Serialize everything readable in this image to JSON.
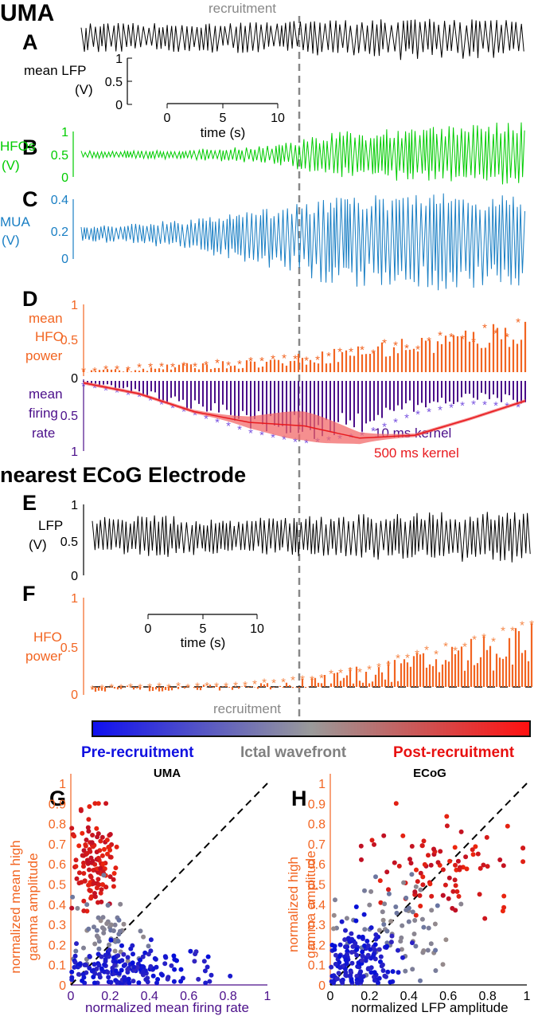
{
  "texts": {
    "uma": "UMA",
    "recruitment_top": "recruitment",
    "recruitment_bottom": "recruitment",
    "ecog_title": "nearest ECoG Electrode",
    "panelA": "A",
    "panelB": "B",
    "panelC": "C",
    "panelD": "D",
    "panelE": "E",
    "panelF": "F",
    "panelG": "G",
    "panelH": "H",
    "a_ylabel1": "mean LFP",
    "a_ylabel2": "(V)",
    "b_ylabel1": "HFOs",
    "b_ylabel2": "(V)",
    "c_ylabel1": "MUA",
    "c_ylabel2": "(V)",
    "d_ylabel1": "mean",
    "d_ylabel2": "HFO",
    "d_ylabel3": "power",
    "d_ylabel4": "mean",
    "d_ylabel5": "firing",
    "d_ylabel6": "rate",
    "kernel10": "10 ms kernel",
    "kernel500": "500 ms kernel",
    "e_ylabel1": "LFP",
    "e_ylabel2": "(V)",
    "f_ylabel1": "HFO",
    "f_ylabel2": "power",
    "time_label": "time (s)",
    "time_label2": "time (s)",
    "pre": "Pre-recruitment",
    "ictal": "Ictal wavefront",
    "post": "Post-recruitment",
    "g_title": "UMA",
    "h_title": "ECoG",
    "g_ylabel1": "normalized mean high",
    "g_ylabel2": "gamma amplitude",
    "g_xlabel": "normalized mean firing rate",
    "h_ylabel1": "normalized high",
    "h_ylabel2": "gamma amplitude",
    "h_xlabel": "normalized LFP amplitude"
  },
  "ticks": {
    "A": [
      "1",
      "0.5",
      "0"
    ],
    "B": [
      "1",
      "0.5",
      "0"
    ],
    "C": [
      "0.4",
      "0.2",
      "0"
    ],
    "D_top": [
      "1",
      "0.5",
      "0"
    ],
    "D_bottom": [
      "0.5",
      "1"
    ],
    "E": [
      "1",
      "0.5",
      "0"
    ],
    "F": [
      "1",
      "0.5",
      "0"
    ],
    "time": [
      "0",
      "5",
      "10"
    ],
    "scatter_y": [
      "1",
      "0.9",
      "0.8",
      "0.7",
      "0.6",
      "0.5",
      "0.4",
      "0.3",
      "0.2",
      "0.1",
      "0"
    ],
    "G_x": [
      "0",
      "0.2",
      "0.4",
      "0.6",
      "0.8",
      "1"
    ],
    "H_x": [
      "0",
      "0.2",
      "0.4",
      "0.6",
      "0.8",
      "1"
    ]
  },
  "colors": {
    "lfp": "#000000",
    "hfo": "#00cc00",
    "mua": "#1a7fc4",
    "orange": "#f26522",
    "purple": "#4b0f8a",
    "red": "#e8191e",
    "pre": "#1010e0",
    "ictal": "#808080",
    "post": "#e81010",
    "dash": "#888888"
  },
  "chart_data": [
    {
      "id": "A",
      "type": "line",
      "ylabel": "mean LFP (V)",
      "xlabel": "time (s)",
      "ylim": [
        0,
        1
      ],
      "xlim": [
        0,
        10
      ],
      "series": [
        {
          "values": [
            0.5,
            0.5,
            0.52,
            0.55,
            0.6,
            0.68,
            0.75,
            0.7,
            0.65
          ]
        }
      ]
    },
    {
      "id": "B",
      "type": "line",
      "ylabel": "HFOs (V)",
      "ylim": [
        0,
        1
      ],
      "series": [
        {
          "values": [
            0.05,
            0.05,
            0.08,
            0.12,
            0.3,
            0.35,
            0.4,
            0.45
          ]
        }
      ]
    },
    {
      "id": "C",
      "type": "line",
      "ylabel": "MUA (V)",
      "ylim": [
        0,
        0.4
      ],
      "series": [
        {
          "values": [
            0.02,
            0.03,
            0.05,
            0.08,
            0.12,
            0.13,
            0.13,
            0.12
          ]
        }
      ]
    },
    {
      "id": "D",
      "type": "line",
      "ylabel": "mean HFO power / mean firing rate",
      "series": [
        {
          "name": "10 ms kernel",
          "values": [
            0.05,
            0.2,
            0.45,
            0.7,
            0.85,
            0.75,
            0.45,
            0.3,
            0.35
          ]
        },
        {
          "name": "500 ms kernel",
          "values": [
            0.05,
            0.2,
            0.45,
            0.6,
            0.65,
            0.82,
            0.78,
            0.55,
            0.3
          ]
        },
        {
          "values": [
            0.08,
            0.12,
            0.16,
            0.2,
            0.25,
            0.35,
            0.45,
            0.55,
            0.65,
            0.8
          ]
        }
      ]
    },
    {
      "id": "E",
      "type": "line",
      "ylabel": "LFP (V)",
      "ylim": [
        0,
        1
      ],
      "series": [
        {
          "values": [
            0.55,
            0.62,
            0.5,
            0.55,
            0.62,
            0.7,
            0.72,
            0.75
          ]
        }
      ]
    },
    {
      "id": "F",
      "type": "line",
      "ylabel": "HFO power",
      "ylim": [
        0,
        1
      ],
      "xlim": [
        0,
        10
      ],
      "series": [
        {
          "values": [
            0.08,
            0.1,
            0.1,
            0.12,
            0.15,
            0.25,
            0.35,
            0.5,
            0.65,
            0.8
          ]
        }
      ]
    },
    {
      "id": "G",
      "type": "scatter",
      "title": "UMA",
      "xlabel": "normalized mean firing rate",
      "ylabel": "normalized mean high gamma amplitude",
      "xlim": [
        0,
        1
      ],
      "ylim": [
        0,
        1
      ],
      "clusters": [
        {
          "color": "post",
          "cx": 0.12,
          "cy": 0.62,
          "sx": 0.06,
          "sy": 0.12,
          "n": 130
        },
        {
          "color": "ictal",
          "cx": 0.2,
          "cy": 0.25,
          "sx": 0.1,
          "sy": 0.1,
          "n": 60
        },
        {
          "color": "pre",
          "cx": 0.3,
          "cy": 0.08,
          "sx": 0.2,
          "sy": 0.05,
          "n": 170
        }
      ]
    },
    {
      "id": "H",
      "type": "scatter",
      "title": "ECoG",
      "xlabel": "normalized LFP amplitude",
      "ylabel": "normalized high gamma amplitude",
      "xlim": [
        0,
        1
      ],
      "ylim": [
        0,
        1
      ],
      "clusters": [
        {
          "color": "post",
          "cx": 0.55,
          "cy": 0.58,
          "sx": 0.18,
          "sy": 0.12,
          "n": 90
        },
        {
          "color": "ictal",
          "cx": 0.35,
          "cy": 0.3,
          "sx": 0.15,
          "sy": 0.12,
          "n": 70
        },
        {
          "color": "pre",
          "cx": 0.15,
          "cy": 0.12,
          "sx": 0.1,
          "sy": 0.08,
          "n": 150
        }
      ]
    }
  ]
}
